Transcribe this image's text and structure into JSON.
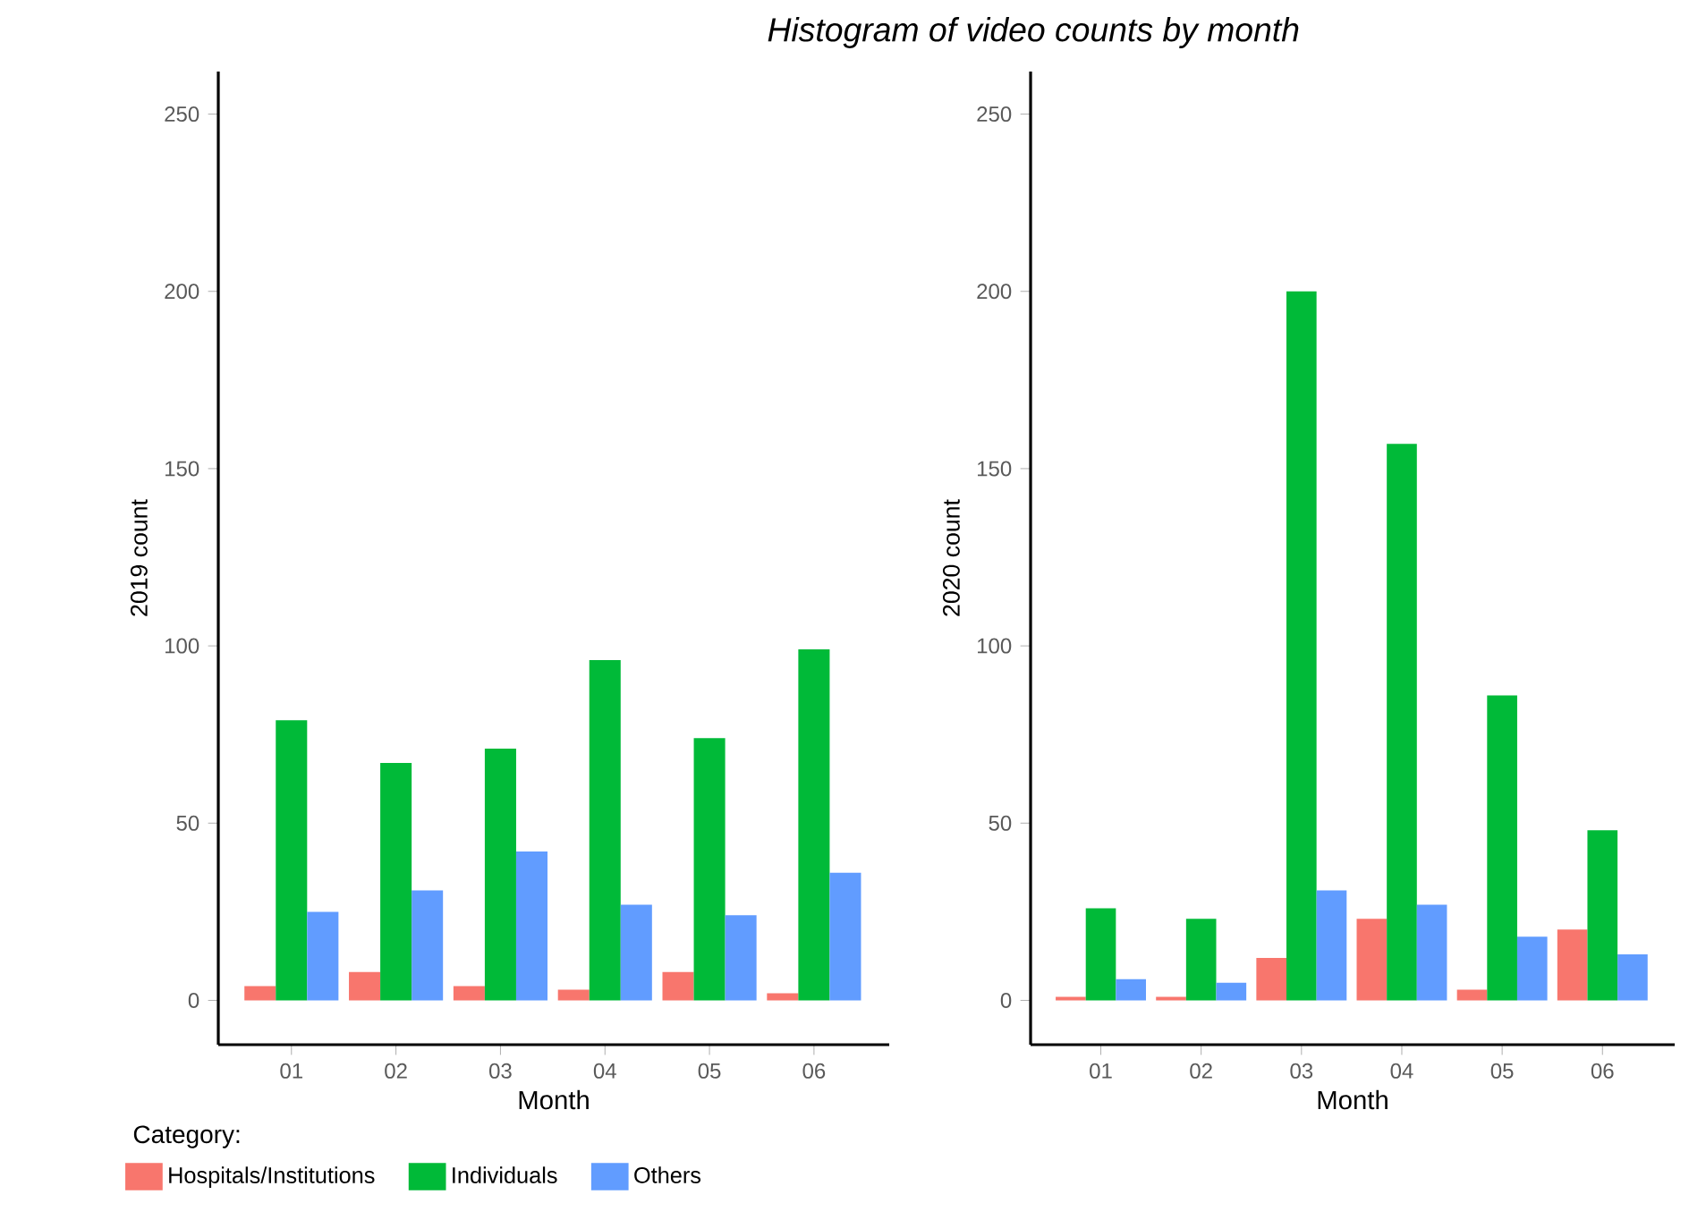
{
  "chart_data": [
    {
      "type": "bar",
      "title": "*Histogram of video counts by month*",
      "xlabel": "Month",
      "ylabel": "2019 count",
      "legend_title": "Category:",
      "legend": "bottom left",
      "categories": [
        "01",
        "02",
        "03",
        "04",
        "05",
        "06"
      ],
      "ylim": [
        -12.5,
        262
      ],
      "yticks": [
        0,
        50,
        100,
        150,
        200,
        250
      ],
      "series": [
        {
          "name": "Hospitals/Institutions",
          "color": "#f8766d",
          "values": [
            4,
            8,
            4,
            3,
            8,
            2
          ]
        },
        {
          "name": "Individuals",
          "color": "#00ba38",
          "values": [
            79,
            67,
            71,
            96,
            74,
            99
          ]
        },
        {
          "name": "Others",
          "color": "#619cff",
          "values": [
            25,
            31,
            42,
            27,
            24,
            36
          ]
        }
      ]
    },
    {
      "type": "bar",
      "xlabel": "Month",
      "ylabel": "2020 count",
      "categories": [
        "01",
        "02",
        "03",
        "04",
        "05",
        "06"
      ],
      "ylim": [
        -12.5,
        262
      ],
      "yticks": [
        0,
        50,
        100,
        150,
        200,
        250
      ],
      "series": [
        {
          "color": "#f8766d",
          "values": [
            1,
            1,
            12,
            23,
            3,
            20
          ]
        },
        {
          "color": "#00ba38",
          "values": [
            26,
            23,
            200,
            157,
            86,
            48
          ]
        },
        {
          "color": "#619cff",
          "values": [
            6,
            5,
            31,
            27,
            18,
            13
          ]
        }
      ]
    }
  ]
}
